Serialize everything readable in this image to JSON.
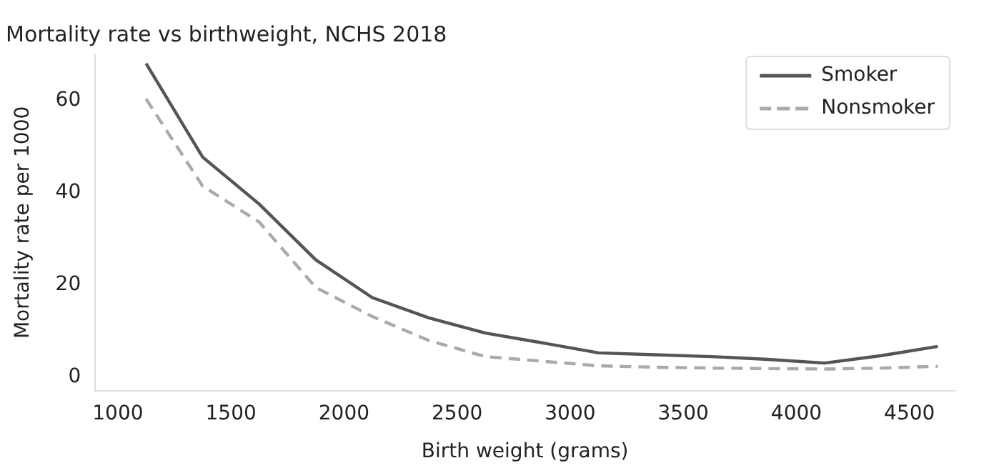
{
  "chart_data": {
    "type": "line",
    "title": "Mortality rate vs birthweight, NCHS 2018",
    "xlabel": "Birth weight (grams)",
    "ylabel": "Mortality rate per 1000",
    "x": [
      1125,
      1375,
      1625,
      1875,
      2125,
      2375,
      2625,
      2875,
      3125,
      3375,
      3625,
      3875,
      4125,
      4375,
      4625
    ],
    "series": [
      {
        "name": "Smoker",
        "color": "#555555",
        "line_style": "solid",
        "values": [
          68,
          47.7,
          37.5,
          25.4,
          17.2,
          12.8,
          9.5,
          7.4,
          5.2,
          4.8,
          4.4,
          3.8,
          3.0,
          4.6,
          6.6
        ]
      },
      {
        "name": "Nonsmoker",
        "color": "#aaaaaa",
        "line_style": "dashed",
        "values": [
          60.3,
          41.4,
          33.6,
          19.4,
          13.1,
          7.9,
          4.4,
          3.4,
          2.4,
          2.1,
          1.9,
          1.8,
          1.7,
          1.9,
          2.3
        ]
      }
    ],
    "xlim": [
      900,
      4700
    ],
    "xticks": [
      1000,
      1500,
      2000,
      2500,
      3000,
      3500,
      4000,
      4500
    ],
    "ylim": [
      -3,
      70
    ],
    "yticks": [
      0,
      20,
      40,
      60
    ],
    "grid": false,
    "legend": "top right",
    "marker": "none"
  }
}
